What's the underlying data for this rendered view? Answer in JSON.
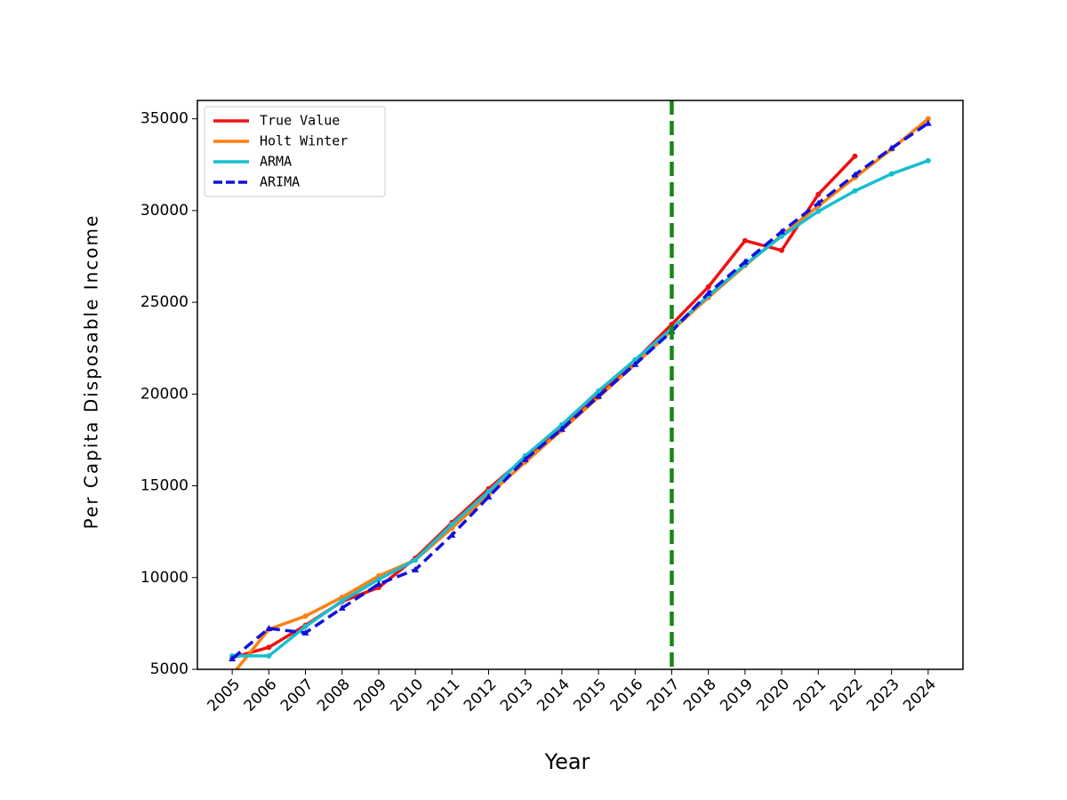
{
  "chart_data": {
    "type": "line",
    "x_label": "Year",
    "y_label": "Per Capita Disposable Income",
    "x": [
      2005,
      2006,
      2007,
      2008,
      2009,
      2010,
      2011,
      2012,
      2013,
      2014,
      2015,
      2016,
      2017,
      2018,
      2019,
      2020,
      2021,
      2022,
      2023,
      2024
    ],
    "xlim": [
      2004.05,
      2024.95
    ],
    "xticks": [
      2005,
      2006,
      2007,
      2008,
      2009,
      2010,
      2011,
      2012,
      2013,
      2014,
      2015,
      2016,
      2017,
      2018,
      2019,
      2020,
      2021,
      2022,
      2023,
      2024
    ],
    "ylim": [
      5000,
      36000
    ],
    "yticks": [
      5000,
      10000,
      15000,
      20000,
      25000,
      30000,
      35000
    ],
    "legend": "upper left",
    "vline": {
      "x": 2017,
      "color": "#138a13"
    },
    "series": [
      {
        "name": "True Value",
        "color": "#ee1111",
        "marker": "dot",
        "dashed": false,
        "values": [
          5630,
          6200,
          7400,
          8700,
          9460,
          11060,
          13000,
          14840,
          16540,
          18230,
          20020,
          21820,
          23800,
          25840,
          28360,
          27830,
          30880,
          32960,
          null,
          null
        ]
      },
      {
        "name": "Holt Winter",
        "color": "#ff7f0e",
        "marker": "dot",
        "dashed": false,
        "values": [
          4700,
          7180,
          7900,
          8930,
          10090,
          10960,
          12700,
          14500,
          16290,
          18040,
          19830,
          21620,
          23470,
          25260,
          27000,
          28650,
          30250,
          31800,
          33350,
          35000
        ]
      },
      {
        "name": "ARMA",
        "color": "#17becf",
        "marker": "dot",
        "dashed": false,
        "values": [
          5730,
          5730,
          7330,
          8730,
          9900,
          10960,
          12900,
          14690,
          16630,
          18330,
          20170,
          21870,
          23560,
          25360,
          27050,
          28600,
          29960,
          31070,
          32000,
          32720
        ]
      },
      {
        "name": "ARIMA",
        "color": "#1111dd",
        "marker": "triangle",
        "dashed": true,
        "values": [
          5580,
          7230,
          6990,
          8340,
          9650,
          10430,
          12320,
          14400,
          16440,
          18090,
          19880,
          21620,
          23420,
          25500,
          27200,
          28850,
          30400,
          31950,
          33400,
          34760
        ]
      }
    ]
  }
}
